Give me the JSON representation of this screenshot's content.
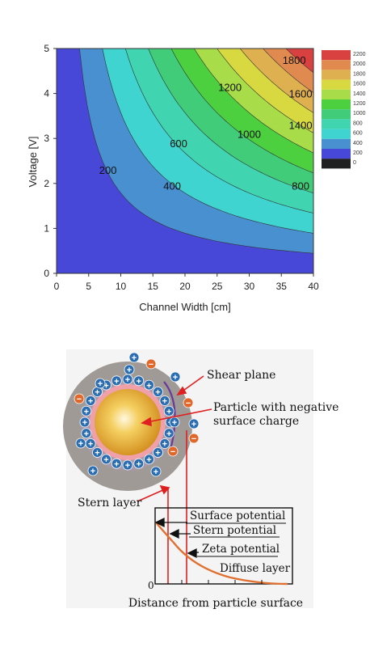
{
  "contour_chart": {
    "xlabel": "Channel Width [cm]",
    "ylabel": "Voltage [V]",
    "x_ticks": [
      "0",
      "5",
      "10",
      "15",
      "20",
      "25",
      "30",
      "35",
      "40"
    ],
    "y_ticks": [
      "0",
      "1",
      "2",
      "3",
      "4",
      "5"
    ],
    "contour_labels": [
      "200",
      "400",
      "600",
      "800",
      "1000",
      "1200",
      "1400",
      "1600",
      "1800"
    ],
    "legend_ticks": [
      "2200",
      "2000",
      "1800",
      "1600",
      "1400",
      "1200",
      "1000",
      "800",
      "600",
      "400",
      "200",
      "0"
    ],
    "legend_colors": [
      "#d94040",
      "#e08a50",
      "#dfb050",
      "#d8d840",
      "#a8dc48",
      "#4cd040",
      "#40cc78",
      "#40d4b0",
      "#40d4d0",
      "#4890d0",
      "#4848d8",
      "#202020"
    ]
  },
  "chart_data": {
    "type": "heatmap",
    "title": "",
    "xlabel": "Channel Width [cm]",
    "ylabel": "Voltage [V]",
    "xlim": [
      0,
      40
    ],
    "ylim": [
      0,
      5
    ],
    "grid": false,
    "legend": "right",
    "contour_levels": [
      0,
      200,
      400,
      600,
      800,
      1000,
      1200,
      1400,
      1600,
      1800,
      2000,
      2200
    ],
    "level_colors": [
      "#4848d8",
      "#4890d0",
      "#40d4d0",
      "#40d4b0",
      "#40cc78",
      "#4cd040",
      "#a8dc48",
      "#d8d840",
      "#dfb050",
      "#e08a50",
      "#d94040"
    ],
    "labeled_points": [
      {
        "label": "200",
        "x": 8,
        "y": 2.3
      },
      {
        "label": "400",
        "x": 18,
        "y": 1.95
      },
      {
        "label": "600",
        "x": 19,
        "y": 2.9
      },
      {
        "label": "800",
        "x": 38,
        "y": 1.95
      },
      {
        "label": "1000",
        "x": 30,
        "y": 3.1
      },
      {
        "label": "1200",
        "x": 27,
        "y": 4.15
      },
      {
        "label": "1400",
        "x": 38,
        "y": 3.3
      },
      {
        "label": "1600",
        "x": 38,
        "y": 4.0
      },
      {
        "label": "1800",
        "x": 37,
        "y": 4.75
      }
    ]
  },
  "edl_diagram": {
    "labels": {
      "shear_plane": "Shear plane",
      "particle_line1": "Particle with negative",
      "particle_line2": "surface charge",
      "stern_layer": "Stern layer",
      "surface_potential": "Surface potential",
      "stern_potential": "Stern potential",
      "zeta_potential": "Zeta potential",
      "diffuse_layer": "Diffuse layer",
      "origin": "0",
      "x_axis_label": "Distance from particle surface"
    },
    "plus_sign": "+",
    "minus_sign": "−",
    "colors": {
      "ion_blue": "#2a6db0",
      "ion_orange": "#e0682a",
      "arrow_red": "#e02020",
      "curve": "#e07030",
      "shell_gray": "#a09a96",
      "shear_purple": "#6a3a9a"
    }
  }
}
